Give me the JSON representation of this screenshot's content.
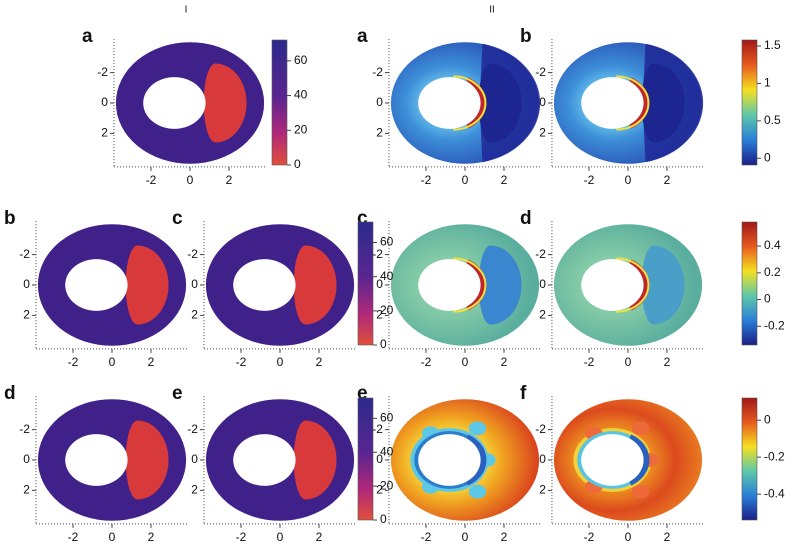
{
  "figure": {
    "column_labels": [
      "I",
      "II"
    ],
    "axes": {
      "xlim": [
        -3.9,
        3.9
      ],
      "ylim": [
        -4.2,
        4.2
      ],
      "xticks": [
        -2,
        0,
        2
      ],
      "yticks": [
        -2,
        0,
        2
      ]
    },
    "panels": [
      {
        "label": "a"
      },
      {
        "label": "a"
      },
      {
        "label": "b"
      },
      {
        "label": "b"
      },
      {
        "label": "c"
      },
      {
        "label": "c"
      },
      {
        "label": "d"
      },
      {
        "label": "d"
      },
      {
        "label": "e"
      },
      {
        "label": "e"
      },
      {
        "label": "f"
      }
    ],
    "colorbars": [
      {
        "lim": [
          0,
          72
        ],
        "ticks": [
          0,
          20,
          40,
          60
        ]
      },
      {
        "lim": [
          0,
          72
        ],
        "ticks": [
          0,
          20,
          40,
          60
        ]
      },
      {
        "lim": [
          0,
          72
        ],
        "ticks": [
          0,
          20,
          40,
          60
        ]
      },
      {
        "lim": [
          -0.09,
          1.58
        ],
        "ticks": [
          0,
          0.5,
          1,
          1.5
        ]
      },
      {
        "lim": [
          -0.34,
          0.58
        ],
        "ticks": [
          -0.2,
          0,
          0.2,
          0.4
        ]
      },
      {
        "lim": [
          -0.54,
          0.12
        ],
        "ticks": [
          -0.4,
          -0.2,
          0
        ]
      }
    ]
  }
}
